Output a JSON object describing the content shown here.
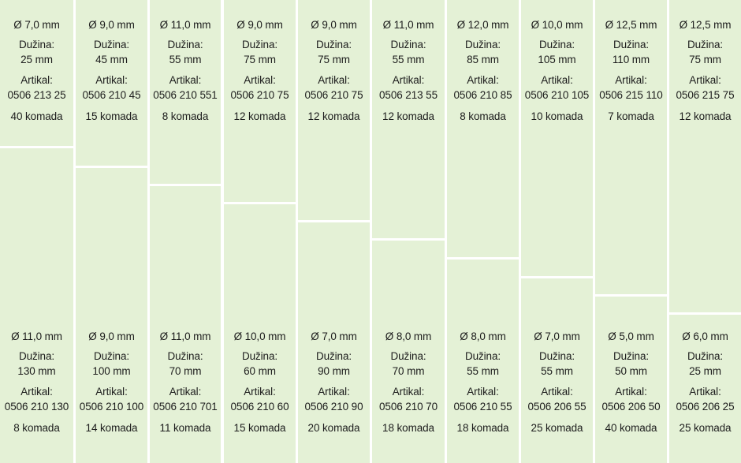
{
  "products": {
    "top": [
      {
        "diameter": "Ø 7,0 mm",
        "length_label": "Dužina:",
        "length": "25 mm",
        "article_label": "Artikal:",
        "article": "0506 213 25",
        "quantity": "40 komada"
      },
      {
        "diameter": "Ø 9,0 mm",
        "length_label": "Dužina:",
        "length": "45 mm",
        "article_label": "Artikal:",
        "article": "0506 210 45",
        "quantity": "15 komada"
      },
      {
        "diameter": "Ø 11,0 mm",
        "length_label": "Dužina:",
        "length": "55 mm",
        "article_label": "Artikal:",
        "article": "0506 210 551",
        "quantity": "8 komada"
      },
      {
        "diameter": "Ø 9,0 mm",
        "length_label": "Dužina:",
        "length": "75 mm",
        "article_label": "Artikal:",
        "article": "0506 210 75",
        "quantity": "12 komada"
      },
      {
        "diameter": "Ø 9,0 mm",
        "length_label": "Dužina:",
        "length": "75 mm",
        "article_label": "Artikal:",
        "article": "0506 210 75",
        "quantity": "12 komada"
      },
      {
        "diameter": "Ø 11,0 mm",
        "length_label": "Dužina:",
        "length": "55 mm",
        "article_label": "Artikal:",
        "article": "0506 213 55",
        "quantity": "12 komada"
      },
      {
        "diameter": "Ø 12,0 mm",
        "length_label": "Dužina:",
        "length": "85 mm",
        "article_label": "Artikal:",
        "article": "0506 210 85",
        "quantity": "8 komada"
      },
      {
        "diameter": "Ø 10,0 mm",
        "length_label": "Dužina:",
        "length": "105 mm",
        "article_label": "Artikal:",
        "article": "0506 210 105",
        "quantity": "10 komada"
      },
      {
        "diameter": "Ø 12,5 mm",
        "length_label": "Dužina:",
        "length": "110 mm",
        "article_label": "Artikal:",
        "article": "0506 215 110",
        "quantity": "7 komada"
      },
      {
        "diameter": "Ø 12,5 mm",
        "length_label": "Dužina:",
        "length": "75 mm",
        "article_label": "Artikal:",
        "article": "0506 215 75",
        "quantity": "12 komada"
      }
    ],
    "bottom": [
      {
        "diameter": "Ø 11,0 mm",
        "length_label": "Dužina:",
        "length": "130 mm",
        "article_label": "Artikal:",
        "article": "0506 210 130",
        "quantity": "8 komada"
      },
      {
        "diameter": "Ø 9,0 mm",
        "length_label": "Dužina:",
        "length": "100 mm",
        "article_label": "Artikal:",
        "article": "0506 210 100",
        "quantity": "14 komada"
      },
      {
        "diameter": "Ø 11,0 mm",
        "length_label": "Dužina:",
        "length": "70 mm",
        "article_label": "Artikal:",
        "article": "0506 210 701",
        "quantity": "11 komada"
      },
      {
        "diameter": "Ø 10,0 mm",
        "length_label": "Dužina:",
        "length": "60 mm",
        "article_label": "Artikal:",
        "article": "0506 210 60",
        "quantity": "15 komada"
      },
      {
        "diameter": "Ø 7,0 mm",
        "length_label": "Dužina:",
        "length": "90 mm",
        "article_label": "Artikal:",
        "article": "0506 210 90",
        "quantity": "20 komada"
      },
      {
        "diameter": "Ø 8,0 mm",
        "length_label": "Dužina:",
        "length": "70 mm",
        "article_label": "Artikal:",
        "article": "0506 210 70",
        "quantity": "18 komada"
      },
      {
        "diameter": "Ø 8,0 mm",
        "length_label": "Dužina:",
        "length": "55 mm",
        "article_label": "Artikal:",
        "article": "0506 210 55",
        "quantity": "18 komada"
      },
      {
        "diameter": "Ø 7,0 mm",
        "length_label": "Dužina:",
        "length": "55 mm",
        "article_label": "Artikal:",
        "article": "0506 206 55",
        "quantity": "25 komada"
      },
      {
        "diameter": "Ø 5,0 mm",
        "length_label": "Dužina:",
        "length": "50 mm",
        "article_label": "Artikal:",
        "article": "0506 206 50",
        "quantity": "40 komada"
      },
      {
        "diameter": "Ø 6,0 mm",
        "length_label": "Dužina:",
        "length": "25 mm",
        "article_label": "Artikal:",
        "article": "0506 206 25",
        "quantity": "25 komada"
      }
    ]
  },
  "colors": {
    "cell_fill": "#e4f1d6",
    "divider": "#ffffff",
    "text": "#1c1c1c"
  }
}
